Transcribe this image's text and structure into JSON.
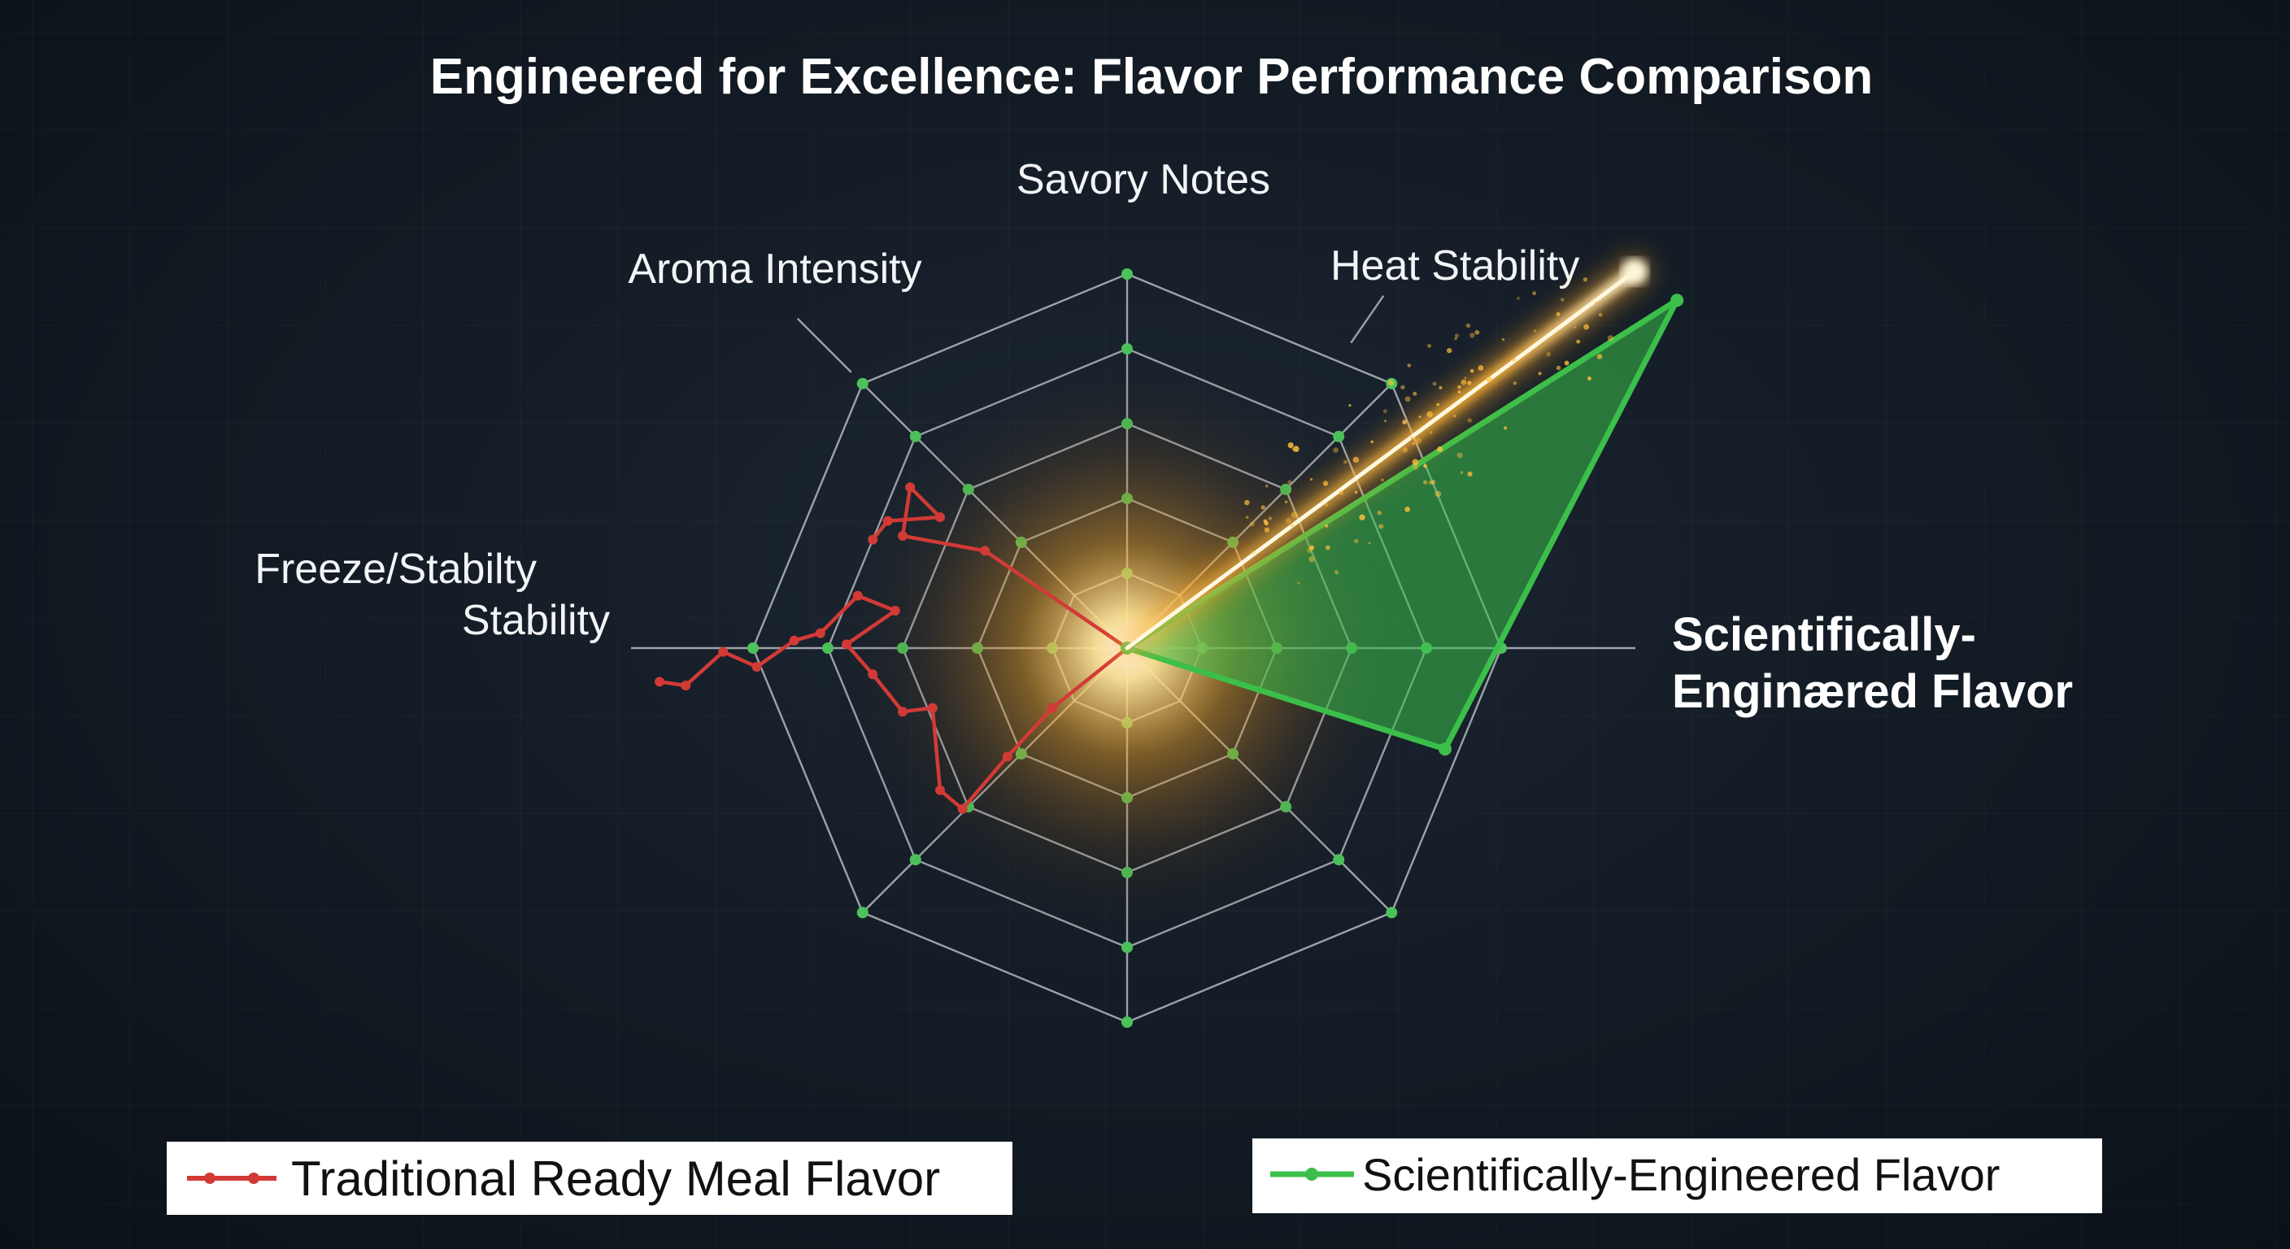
{
  "chart_data": {
    "type": "radar",
    "title": "Engineered for Excellence: Flavor Performance Comparison",
    "axes": [
      {
        "label": "Savory Notes"
      },
      {
        "label": "Heat Stability"
      },
      {
        "label": ""
      },
      {
        "label": ""
      },
      {
        "label": ""
      },
      {
        "label": ""
      },
      {
        "label": "Freeze/Stabilty",
        "label_line2": "Stability"
      },
      {
        "label": "Aroma Intensity"
      }
    ],
    "rings": 5,
    "grid": true,
    "series_annotation": {
      "line1": "Scientifically-",
      "line2": "Enginæred Flavor"
    },
    "series": [
      {
        "name": "Traditional Ready Meal Flavor",
        "color": "#d23a36",
        "points": [
          [
            -1.25,
            -0.09
          ],
          [
            -1.18,
            -0.1
          ],
          [
            -1.08,
            -0.01
          ],
          [
            -0.99,
            -0.05
          ],
          [
            -0.89,
            0.02
          ],
          [
            -0.82,
            0.04
          ],
          [
            -0.72,
            0.14
          ],
          [
            -0.62,
            0.1
          ],
          [
            -0.75,
            0.01
          ],
          [
            -0.68,
            -0.07
          ],
          [
            -0.6,
            -0.17
          ],
          [
            -0.52,
            -0.16
          ],
          [
            -0.5,
            -0.38
          ],
          [
            -0.44,
            -0.43
          ],
          [
            -0.32,
            -0.29
          ],
          [
            -0.2,
            -0.16
          ],
          [
            0,
            0
          ],
          [
            -0.38,
            0.26
          ],
          [
            -0.6,
            0.3
          ],
          [
            -0.58,
            0.43
          ],
          [
            -0.5,
            0.35
          ],
          [
            -0.64,
            0.34
          ],
          [
            -0.68,
            0.29
          ]
        ]
      },
      {
        "name": "Scientifically-Engineered Flavor",
        "color": "#3bbf4a",
        "points": [
          [
            0,
            0
          ],
          [
            1.47,
            0.93
          ],
          [
            0.85,
            -0.27
          ]
        ]
      }
    ],
    "legend": [
      {
        "label": "Traditional Ready Meal Flavor",
        "color": "#d23a36"
      },
      {
        "label": "Scientifically-Engineered Flavor",
        "color": "#3bbf4a"
      }
    ]
  }
}
